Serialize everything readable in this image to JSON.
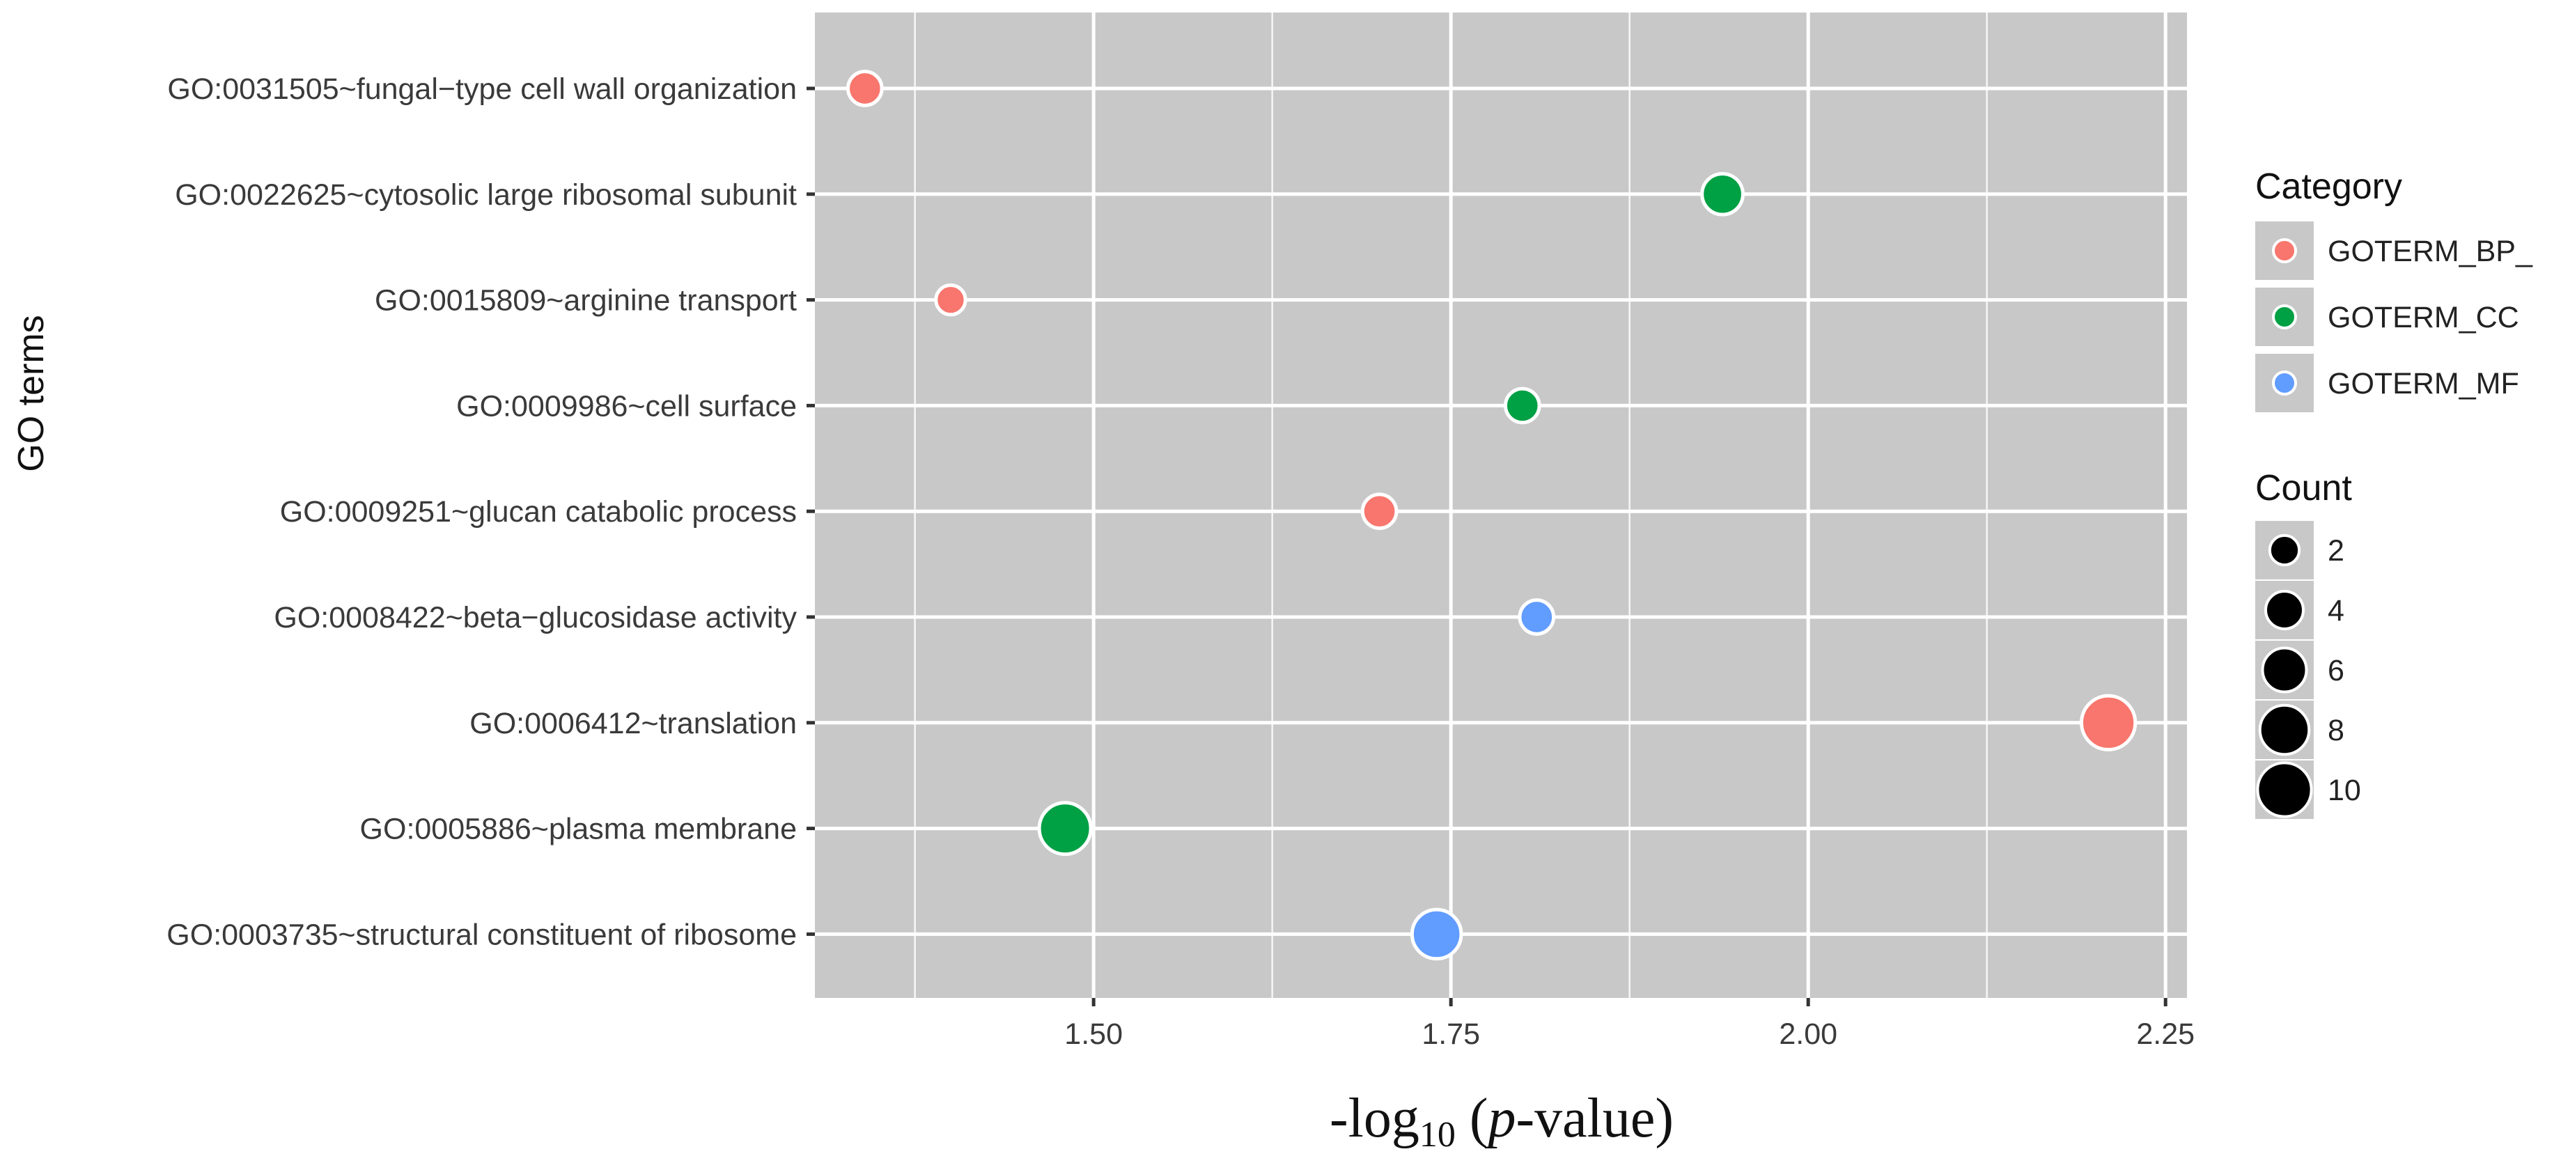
{
  "chart_data": {
    "type": "scatter",
    "title": "",
    "xlabel": {
      "prefix": "-log",
      "subscript": "10",
      "middle": " (",
      "italic": "p",
      "suffix": "-value)"
    },
    "ylabel": "GO terms",
    "xlim": [
      1.305,
      2.265
    ],
    "x_ticks": [
      1.5,
      1.75,
      2.0,
      2.25
    ],
    "x_tick_labels": [
      "1.50",
      "1.75",
      "2.00",
      "2.25"
    ],
    "grid": true,
    "legend_position": "right",
    "categories": [
      "GO:0031505~fungal−type cell wall organization",
      "GO:0022625~cytosolic large ribosomal subunit",
      "GO:0015809~arginine transport",
      "GO:0009986~cell surface",
      "GO:0009251~glucan catabolic process",
      "GO:0008422~beta−glucosidase activity",
      "GO:0006412~translation",
      "GO:0005886~plasma membrane",
      "GO:0003735~structural constituent of ribosome"
    ],
    "points": [
      {
        "term": "GO:0031505~fungal−type cell wall organization",
        "x": 1.34,
        "count": 3,
        "category": "GOTERM_BP_DIRECT"
      },
      {
        "term": "GO:0022625~cytosolic large ribosomal subunit",
        "x": 1.94,
        "count": 5,
        "category": "GOTERM_CC_DIRECT"
      },
      {
        "term": "GO:0015809~arginine transport",
        "x": 1.4,
        "count": 2,
        "category": "GOTERM_BP_DIRECT"
      },
      {
        "term": "GO:0009986~cell surface",
        "x": 1.8,
        "count": 3,
        "category": "GOTERM_CC_DIRECT"
      },
      {
        "term": "GO:0009251~glucan catabolic process",
        "x": 1.7,
        "count": 3,
        "category": "GOTERM_BP_DIRECT"
      },
      {
        "term": "GO:0008422~beta−glucosidase activity",
        "x": 1.81,
        "count": 3,
        "category": "GOTERM_MF_DIRECT"
      },
      {
        "term": "GO:0006412~translation",
        "x": 2.21,
        "count": 10,
        "category": "GOTERM_BP_DIRECT"
      },
      {
        "term": "GO:0005886~plasma membrane",
        "x": 1.48,
        "count": 9,
        "category": "GOTERM_CC_DIRECT"
      },
      {
        "term": "GO:0003735~structural constituent of ribosome",
        "x": 1.74,
        "count": 8,
        "category": "GOTERM_MF_DIRECT"
      }
    ],
    "legend_category": {
      "title": "Category",
      "items": [
        {
          "label": "GOTERM_BP_",
          "color": "#F8766D",
          "key": "GOTERM_BP_DIRECT"
        },
        {
          "label": "GOTERM_CC",
          "color": "#00A044",
          "key": "GOTERM_CC_DIRECT"
        },
        {
          "label": "GOTERM_MF",
          "color": "#619CFF",
          "key": "GOTERM_MF_DIRECT"
        }
      ]
    },
    "legend_count": {
      "title": "Count",
      "values": [
        2,
        4,
        6,
        8,
        10
      ],
      "labels": [
        "2",
        "4",
        "6",
        "8",
        "10"
      ]
    },
    "colors": {
      "panel_background": "#C8C8C8",
      "grid": "#FFFFFF",
      "count_key": "#000000",
      "point_border": "#FFFFFF"
    }
  }
}
